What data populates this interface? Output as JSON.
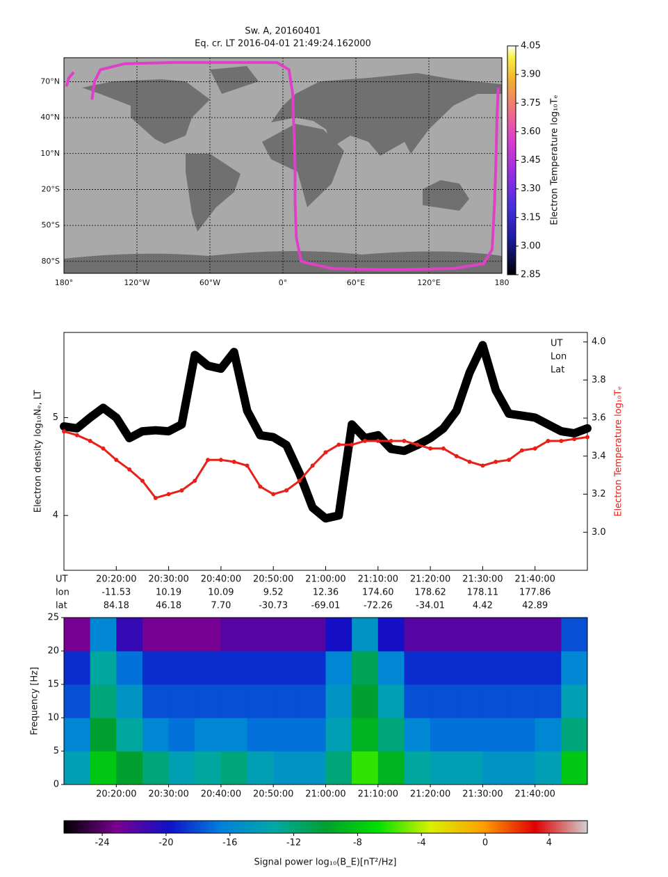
{
  "chart_data": [
    {
      "type": "map",
      "title": "Sw. A, 20160401",
      "subtitle": "Eq. cr. LT  2016-04-01 21:49:24.162000",
      "xlim": [
        -180,
        180
      ],
      "ylim": [
        -90,
        90
      ],
      "xticks": [
        {
          "value": -180,
          "label": "180°"
        },
        {
          "value": -120,
          "label": "120°W"
        },
        {
          "value": -60,
          "label": "60°W"
        },
        {
          "value": 0,
          "label": "0°"
        },
        {
          "value": 60,
          "label": "60°E"
        },
        {
          "value": 120,
          "label": "120°E"
        },
        {
          "value": 180,
          "label": "180"
        }
      ],
      "yticks": [
        {
          "value": 70,
          "label": "70°N"
        },
        {
          "value": 40,
          "label": "40°N"
        },
        {
          "value": 10,
          "label": "10°N"
        },
        {
          "value": -20,
          "label": "20°S"
        },
        {
          "value": -50,
          "label": "50°S"
        },
        {
          "value": -80,
          "label": "80°S"
        }
      ],
      "grid": true,
      "series": [
        {
          "color": "#e040c8",
          "x": [
            -178,
            -176,
            -172,
            null,
            -157,
            -155,
            -150,
            -130,
            -90,
            -40,
            -5,
            5,
            8,
            9,
            10,
            10,
            11,
            15,
            40,
            90,
            140,
            165,
            172,
            174,
            175,
            176,
            177
          ],
          "values": [
            66,
            73,
            78,
            null,
            55,
            70,
            80,
            85,
            86,
            86,
            86,
            80,
            60,
            30,
            0,
            -30,
            -60,
            -80,
            -86,
            -87,
            -86,
            -82,
            -70,
            -30,
            0,
            40,
            65
          ]
        }
      ],
      "colorbar": {
        "label": "Electron Temperature log₁₀Tₑ",
        "lim": [
          2.85,
          4.05
        ],
        "ticks": [
          4.05,
          {
            "value": 3.9,
            "label": "3.90"
          },
          3.75,
          {
            "value": 3.6,
            "label": "3.60"
          },
          3.45,
          {
            "value": 3.3,
            "label": "3.30"
          },
          3.15,
          {
            "value": 3.0,
            "label": "3.00"
          },
          2.85
        ]
      }
    },
    {
      "type": "scatter",
      "ylabel": "Electron density log₁₀Nₑ, LT",
      "y2label": "Electron Temperature log₁₀Tₑ",
      "corner_text": [
        "UT",
        "Lon",
        "Lat"
      ],
      "xlim": [
        "20:10:00",
        "21:50:00"
      ],
      "xticks": [
        "20:20:00",
        "20:30:00",
        "20:40:00",
        "20:50:00",
        "21:00:00",
        "21:10:00",
        "21:20:00",
        "21:30:00",
        "21:40:00"
      ],
      "tick_row_labels": [
        "UT",
        "lon",
        "lat"
      ],
      "lon_ticks": [
        "-11.53",
        "10.19",
        "10.09",
        "9.52",
        "12.36",
        "174.60",
        "178.62",
        "178.11",
        "177.86"
      ],
      "lat_ticks": [
        "84.18",
        "46.18",
        "7.70",
        "-30.73",
        "-69.01",
        "-72.26",
        "-34.01",
        "4.42",
        "42.89"
      ],
      "ylim": [
        3.44,
        5.87
      ],
      "yticks": [
        4,
        5
      ],
      "y2lim": [
        2.8,
        4.05
      ],
      "y2ticks": [
        {
          "value": 3.0,
          "label": "3.0"
        },
        3.2,
        3.4,
        3.6,
        3.8,
        {
          "value": 4.0,
          "label": "4.0"
        }
      ],
      "x": [
        "20:10:00",
        "20:12:30",
        "20:15:00",
        "20:17:30",
        "20:20:00",
        "20:22:30",
        "20:25:00",
        "20:27:30",
        "20:30:00",
        "20:32:30",
        "20:35:00",
        "20:37:30",
        "20:40:00",
        "20:42:30",
        "20:45:00",
        "20:47:30",
        "20:50:00",
        "20:52:30",
        "20:55:00",
        "20:57:30",
        "21:00:00",
        "21:02:30",
        "21:05:00",
        "21:07:30",
        "21:10:00",
        "21:12:30",
        "21:15:00",
        "21:17:30",
        "21:20:00",
        "21:22:30",
        "21:25:00",
        "21:27:30",
        "21:30:00",
        "21:32:30",
        "21:35:00",
        "21:37:30",
        "21:40:00",
        "21:42:30",
        "21:45:00",
        "21:47:30",
        "21:50:00"
      ],
      "series": [
        {
          "color": "#000000",
          "values": [
            4.91,
            4.89,
            5.0,
            5.1,
            5.0,
            4.79,
            4.86,
            4.87,
            4.86,
            4.93,
            5.64,
            5.53,
            5.5,
            5.67,
            5.07,
            4.82,
            4.8,
            4.72,
            4.43,
            4.08,
            3.97,
            4.0,
            4.93,
            4.79,
            4.82,
            4.68,
            4.66,
            4.72,
            4.79,
            4.89,
            5.07,
            5.46,
            5.74,
            5.28,
            5.04,
            5.02,
            5.0,
            4.93,
            4.86,
            4.84,
            4.89
          ]
        },
        {
          "color": "#e8201a",
          "axis": "y2",
          "values": [
            3.53,
            3.51,
            3.48,
            3.44,
            3.38,
            3.33,
            3.27,
            3.18,
            3.2,
            3.22,
            3.27,
            3.38,
            3.38,
            3.37,
            3.35,
            3.24,
            3.2,
            3.22,
            3.27,
            3.35,
            3.42,
            3.46,
            3.46,
            3.48,
            3.48,
            3.48,
            3.48,
            3.46,
            3.44,
            3.44,
            3.4,
            3.37,
            3.35,
            3.37,
            3.38,
            3.43,
            3.44,
            3.48,
            3.48,
            3.49,
            3.5
          ]
        }
      ]
    },
    {
      "type": "heatmap",
      "ylabel": "Frequency [Hz]",
      "xlim": [
        "20:10:00",
        "21:50:00"
      ],
      "xticks": [
        "20:20:00",
        "20:30:00",
        "20:40:00",
        "20:50:00",
        "21:00:00",
        "21:10:00",
        "21:20:00",
        "21:30:00",
        "21:40:00"
      ],
      "ylim": [
        0,
        25
      ],
      "yticks": [
        0,
        5,
        10,
        15,
        20,
        25
      ],
      "xbins": [
        "20:10:00",
        "20:15:00",
        "20:20:00",
        "20:25:00",
        "20:30:00",
        "20:35:00",
        "20:40:00",
        "20:45:00",
        "20:50:00",
        "20:55:00",
        "21:00:00",
        "21:05:00",
        "21:10:00",
        "21:15:00",
        "21:20:00",
        "21:25:00",
        "21:30:00",
        "21:35:00",
        "21:40:00",
        "21:45:00",
        "21:50:00"
      ],
      "ybins": [
        0,
        5,
        10,
        15,
        20,
        25
      ],
      "z": [
        [
          -14,
          -8,
          -10,
          -12,
          -14,
          -13,
          -12,
          -14,
          -15,
          -15,
          -12,
          -6,
          -9,
          -13,
          -14,
          -14,
          -15,
          -15,
          -14,
          -8
        ],
        [
          -16,
          -10,
          -13,
          -16,
          -17,
          -16,
          -16,
          -17,
          -17,
          -17,
          -14,
          -9,
          -12,
          -16,
          -17,
          -17,
          -17,
          -17,
          -16,
          -12
        ],
        [
          -18,
          -12,
          -15,
          -18,
          -18,
          -18,
          -18,
          -18,
          -18,
          -18,
          -15,
          -10,
          -14,
          -18,
          -18,
          -18,
          -18,
          -18,
          -18,
          -14
        ],
        [
          -19,
          -13,
          -17,
          -19,
          -19,
          -19,
          -19,
          -19,
          -19,
          -19,
          -16,
          -11,
          -16,
          -19,
          -19,
          -19,
          -19,
          -19,
          -19,
          -16
        ],
        [
          -23,
          -16,
          -21,
          -23,
          -23,
          -23,
          -22,
          -22,
          -22,
          -22,
          -20,
          -15,
          -20,
          -22,
          -22,
          -22,
          -22,
          -22,
          -22,
          -18
        ]
      ],
      "colorbar": {
        "label": "Signal power log₁₀(B_E)[nT²/Hz]",
        "lim": [
          -26.4,
          6.4
        ],
        "ticks": [
          -24,
          -20,
          -16,
          -12,
          -8,
          -4,
          0,
          4
        ]
      }
    }
  ]
}
